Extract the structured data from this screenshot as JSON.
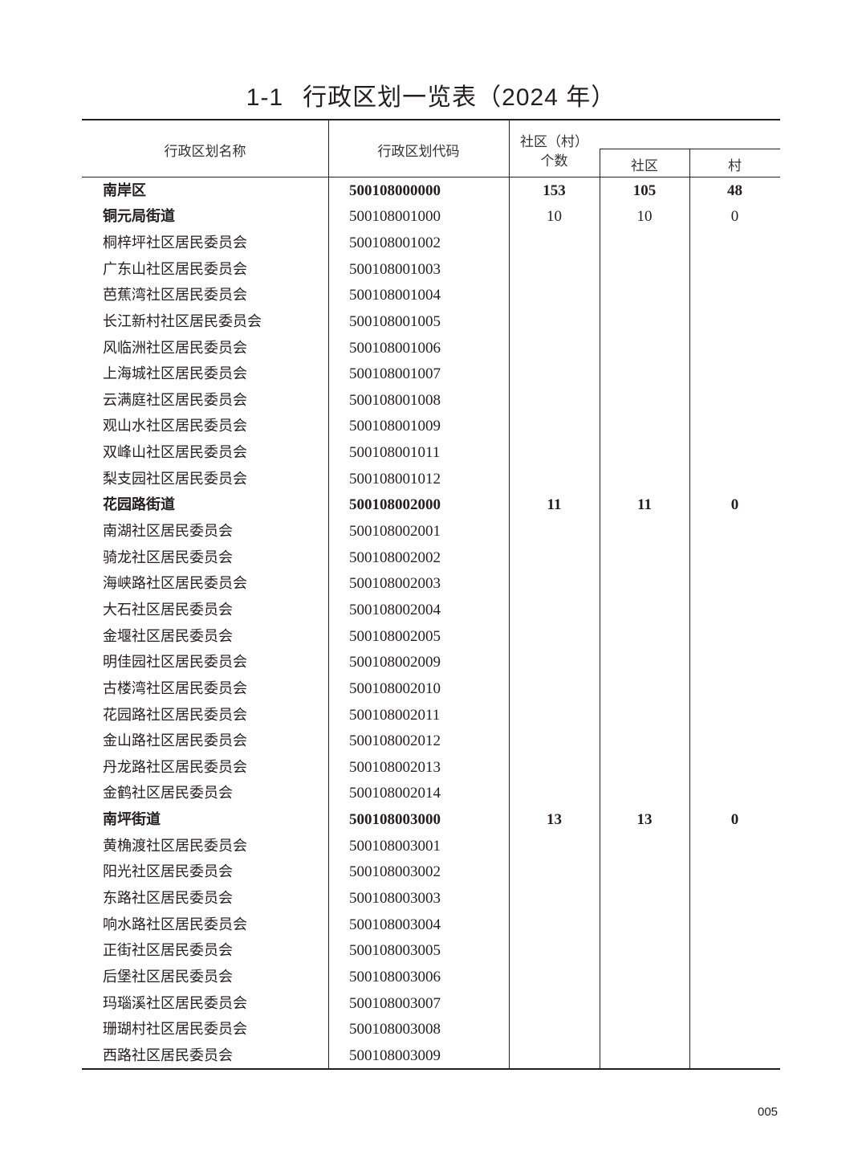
{
  "title": {
    "number": "1-1",
    "text": "行政区划一览表（2024 年）"
  },
  "headers": {
    "name": "行政区划名称",
    "code": "行政区划代码",
    "count_line1": "社区（村）",
    "count_line2": "个数",
    "community": "社区",
    "village": "村"
  },
  "rows": [
    {
      "name": "南岸区",
      "code": "500108000000",
      "total": "153",
      "community": "105",
      "village": "48",
      "style": "bold"
    },
    {
      "name": "铜元局街道",
      "code": "500108001000",
      "total": "10",
      "community": "10",
      "village": "0",
      "style": "bold-name"
    },
    {
      "name": "桐梓坪社区居民委员会",
      "code": "500108001002"
    },
    {
      "name": "广东山社区居民委员会",
      "code": "500108001003"
    },
    {
      "name": "芭蕉湾社区居民委员会",
      "code": "500108001004"
    },
    {
      "name": "长江新村社区居民委员会",
      "code": "500108001005"
    },
    {
      "name": "风临洲社区居民委员会",
      "code": "500108001006"
    },
    {
      "name": "上海城社区居民委员会",
      "code": "500108001007"
    },
    {
      "name": "云满庭社区居民委员会",
      "code": "500108001008"
    },
    {
      "name": "观山水社区居民委员会",
      "code": "500108001009"
    },
    {
      "name": "双峰山社区居民委员会",
      "code": "500108001011"
    },
    {
      "name": "梨支园社区居民委员会",
      "code": "500108001012"
    },
    {
      "name": "花园路街道",
      "code": "500108002000",
      "total": "11",
      "community": "11",
      "village": "0",
      "style": "bold"
    },
    {
      "name": "南湖社区居民委员会",
      "code": "500108002001"
    },
    {
      "name": "骑龙社区居民委员会",
      "code": "500108002002"
    },
    {
      "name": "海峡路社区居民委员会",
      "code": "500108002003"
    },
    {
      "name": "大石社区居民委员会",
      "code": "500108002004"
    },
    {
      "name": "金堰社区居民委员会",
      "code": "500108002005"
    },
    {
      "name": "明佳园社区居民委员会",
      "code": "500108002009"
    },
    {
      "name": "古楼湾社区居民委员会",
      "code": "500108002010"
    },
    {
      "name": "花园路社区居民委员会",
      "code": "500108002011"
    },
    {
      "name": "金山路社区居民委员会",
      "code": "500108002012"
    },
    {
      "name": "丹龙路社区居民委员会",
      "code": "500108002013"
    },
    {
      "name": "金鹤社区居民委员会",
      "code": "500108002014"
    },
    {
      "name": "南坪街道",
      "code": "500108003000",
      "total": "13",
      "community": "13",
      "village": "0",
      "style": "bold"
    },
    {
      "name": "黄桷渡社区居民委员会",
      "code": "500108003001"
    },
    {
      "name": "阳光社区居民委员会",
      "code": "500108003002"
    },
    {
      "name": "东路社区居民委员会",
      "code": "500108003003"
    },
    {
      "name": "响水路社区居民委员会",
      "code": "500108003004"
    },
    {
      "name": "正街社区居民委员会",
      "code": "500108003005"
    },
    {
      "name": "后堡社区居民委员会",
      "code": "500108003006"
    },
    {
      "name": "玛瑙溪社区居民委员会",
      "code": "500108003007"
    },
    {
      "name": "珊瑚村社区居民委员会",
      "code": "500108003008"
    },
    {
      "name": "西路社区居民委员会",
      "code": "500108003009"
    }
  ],
  "page_number": "005"
}
